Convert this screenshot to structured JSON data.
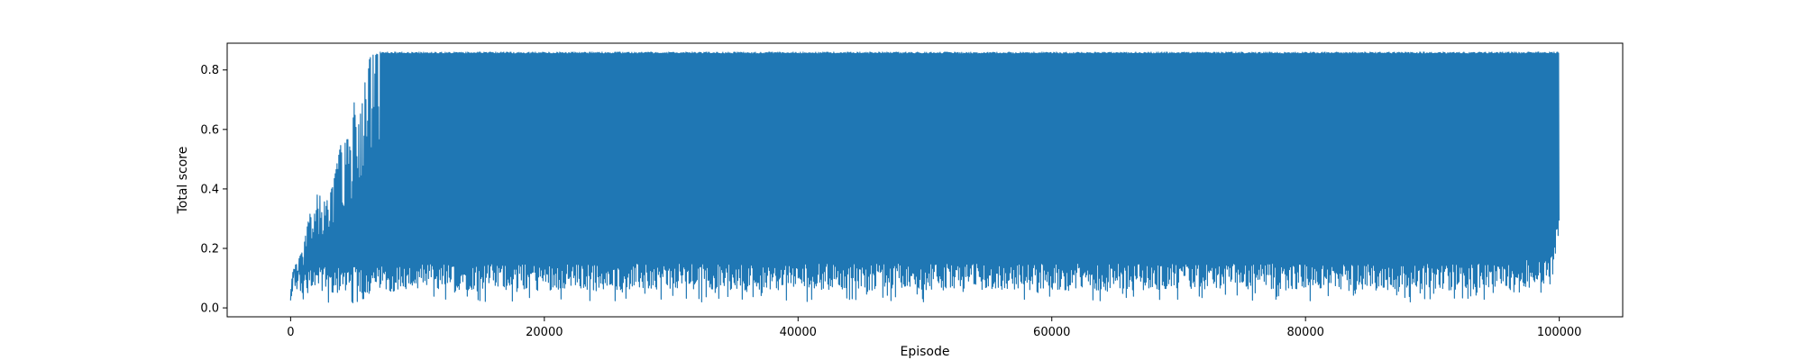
{
  "chart_data": {
    "type": "line",
    "title": "",
    "xlabel": "Episode",
    "ylabel": "Total score",
    "xlim": [
      -5000,
      105000
    ],
    "ylim": [
      -0.03,
      0.89
    ],
    "x_ticks": [
      0,
      20000,
      40000,
      60000,
      80000,
      100000
    ],
    "x_tick_labels": [
      "0",
      "20000",
      "40000",
      "60000",
      "80000",
      "100000"
    ],
    "y_ticks": [
      0.0,
      0.2,
      0.4,
      0.6,
      0.8
    ],
    "y_tick_labels": [
      "0.0",
      "0.2",
      "0.4",
      "0.6",
      "0.8"
    ],
    "grid": false,
    "legend": null,
    "series": [
      {
        "color": "#1f77b4",
        "x_range": [
          0,
          100000
        ],
        "upper_envelope": {
          "x": [
            0,
            200,
            500,
            1000,
            1500,
            1800,
            2000,
            2500,
            3000,
            3500,
            4000,
            4200,
            4500,
            4800,
            5000,
            5200,
            5500,
            5800,
            6000,
            6200,
            6500,
            7000,
            8000,
            10000,
            20000,
            30000,
            40000,
            50000,
            60000,
            70000,
            80000,
            90000,
            100000
          ],
          "y": [
            0.05,
            0.14,
            0.15,
            0.2,
            0.32,
            0.28,
            0.38,
            0.38,
            0.36,
            0.45,
            0.56,
            0.55,
            0.57,
            0.52,
            0.7,
            0.58,
            0.65,
            0.73,
            0.83,
            0.84,
            0.85,
            0.86,
            0.86,
            0.86,
            0.86,
            0.86,
            0.86,
            0.86,
            0.86,
            0.86,
            0.86,
            0.86,
            0.86
          ]
        },
        "lower_envelope": {
          "x": [
            0,
            5000,
            10000,
            20000,
            30000,
            40000,
            50000,
            60000,
            70000,
            80000,
            90000,
            96000,
            99500,
            100000
          ],
          "y": [
            0.01,
            0.01,
            0.02,
            0.02,
            0.02,
            0.02,
            0.02,
            0.02,
            0.02,
            0.02,
            0.02,
            0.02,
            0.05,
            0.23
          ]
        }
      }
    ]
  }
}
